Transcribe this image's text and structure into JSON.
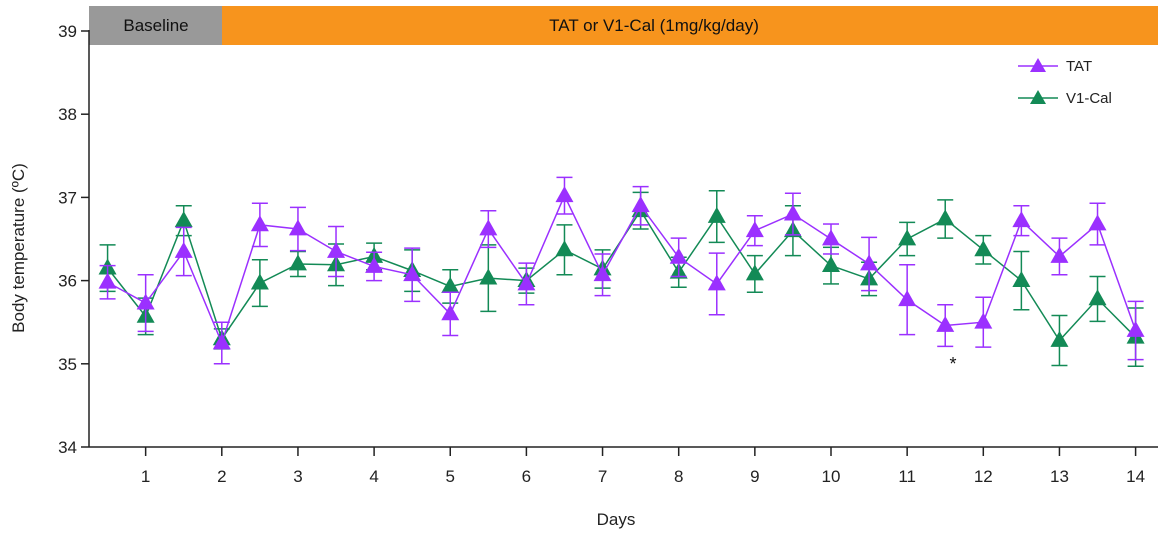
{
  "chart_data": {
    "type": "line",
    "xlabel": "Days",
    "ylabel": "Body temperature (ºC)",
    "ylim": [
      34,
      39
    ],
    "yticks": [
      "34",
      "35",
      "36",
      "37",
      "38",
      "39"
    ],
    "xticks": [
      "1",
      "2",
      "3",
      "4",
      "5",
      "6",
      "7",
      "8",
      "9",
      "10",
      "11",
      "12",
      "13",
      "14"
    ],
    "x": [
      0.5,
      1,
      1.5,
      2,
      2.5,
      3,
      3.5,
      4,
      4.5,
      5,
      5.5,
      6,
      6.5,
      7,
      7.5,
      8,
      8.5,
      9,
      9.5,
      10,
      10.5,
      11,
      11.5,
      12,
      12.5,
      13,
      13.5,
      14
    ],
    "grid": false,
    "legend_position": "top-right",
    "phases": [
      {
        "label": "Baseline",
        "color": "#999999"
      },
      {
        "label": "TAT or V1-Cal (1mg/kg/day)",
        "color": "#F7941D"
      }
    ],
    "annotations": [
      {
        "text": "*",
        "x": 11.5,
        "y": 35.02
      }
    ],
    "series": [
      {
        "name": "TAT",
        "color": "#9B30FF",
        "values": [
          35.98,
          35.73,
          36.35,
          35.25,
          36.67,
          36.62,
          36.35,
          36.17,
          36.07,
          35.6,
          36.62,
          35.96,
          37.02,
          36.07,
          36.9,
          36.28,
          35.96,
          36.6,
          36.8,
          36.5,
          36.2,
          35.77,
          35.46,
          35.5,
          36.72,
          36.29,
          36.68,
          35.4
        ],
        "errors": [
          0.2,
          0.34,
          0.29,
          0.25,
          0.26,
          0.26,
          0.3,
          0.17,
          0.32,
          0.26,
          0.22,
          0.25,
          0.22,
          0.25,
          0.23,
          0.23,
          0.37,
          0.18,
          0.25,
          0.18,
          0.32,
          0.42,
          0.25,
          0.3,
          0.18,
          0.22,
          0.25,
          0.35
        ]
      },
      {
        "name": "V1-Cal",
        "color": "#138A56",
        "values": [
          36.15,
          35.57,
          36.72,
          35.3,
          35.97,
          36.2,
          36.19,
          36.29,
          36.12,
          35.93,
          36.03,
          36.0,
          36.37,
          36.14,
          36.84,
          36.1,
          36.77,
          36.08,
          36.6,
          36.18,
          36.02,
          36.5,
          36.74,
          36.37,
          36.0,
          35.28,
          35.78,
          35.32
        ],
        "errors": [
          0.28,
          0.22,
          0.18,
          0.12,
          0.28,
          0.15,
          0.25,
          0.16,
          0.25,
          0.2,
          0.4,
          0.15,
          0.3,
          0.23,
          0.22,
          0.18,
          0.31,
          0.22,
          0.3,
          0.22,
          0.2,
          0.2,
          0.23,
          0.17,
          0.35,
          0.3,
          0.27,
          0.35
        ]
      }
    ]
  }
}
